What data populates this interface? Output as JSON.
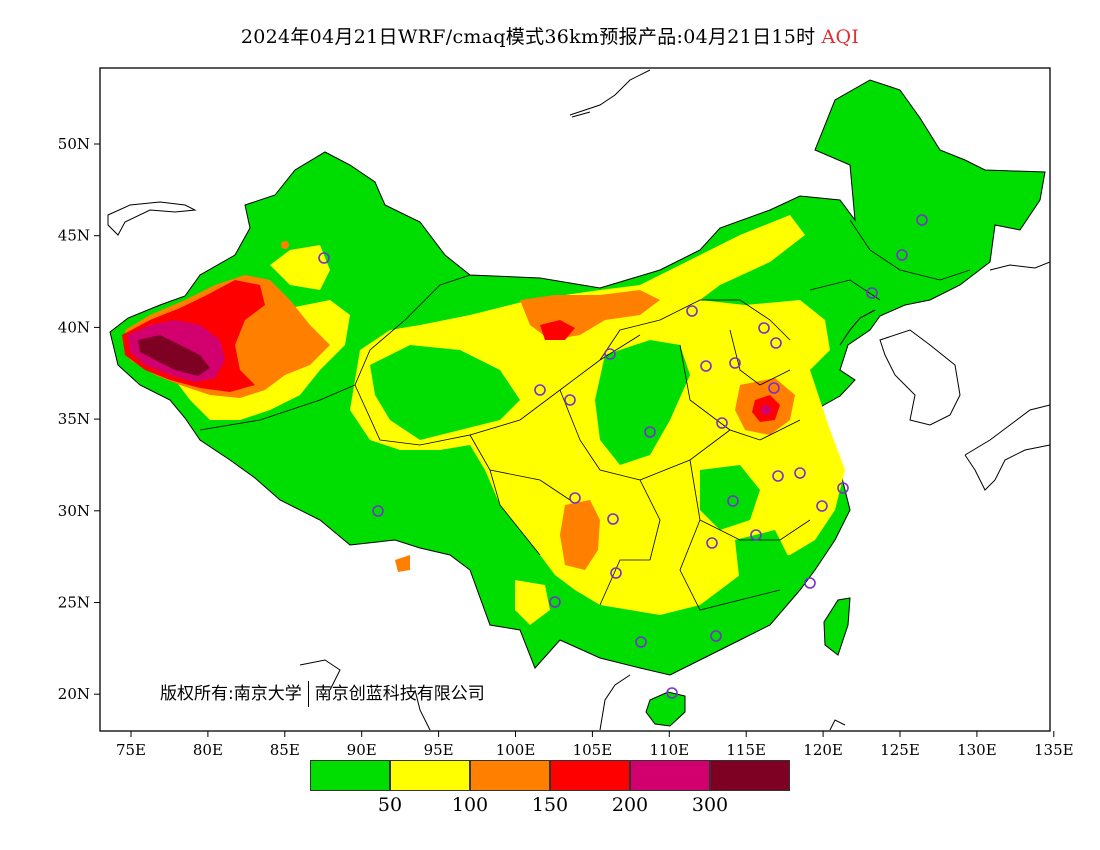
{
  "title": {
    "main": "2024年04月21日WRF/cmaq模式36km预报产品:04月21日15时",
    "variable": "AQI",
    "variable_color": "#e03030"
  },
  "axes": {
    "x_ticks": [
      "75E",
      "80E",
      "85E",
      "90E",
      "95E",
      "100E",
      "105E",
      "110E",
      "115E",
      "120E",
      "125E",
      "130E",
      "135E"
    ],
    "y_ticks": [
      "50N",
      "45N",
      "40N",
      "35N",
      "30N",
      "25N",
      "20N"
    ]
  },
  "copyright": {
    "left": "版权所有:南京大学",
    "right": "南京创蓝科技有限公司"
  },
  "legend": {
    "colors": [
      "#00dd00",
      "#ffff00",
      "#ff8000",
      "#ff0000",
      "#d2006e",
      "#7e0023"
    ],
    "labels": [
      "50",
      "100",
      "150",
      "200",
      "300"
    ]
  },
  "station_marker_color": "#7a2fd0",
  "station_count": 30
}
